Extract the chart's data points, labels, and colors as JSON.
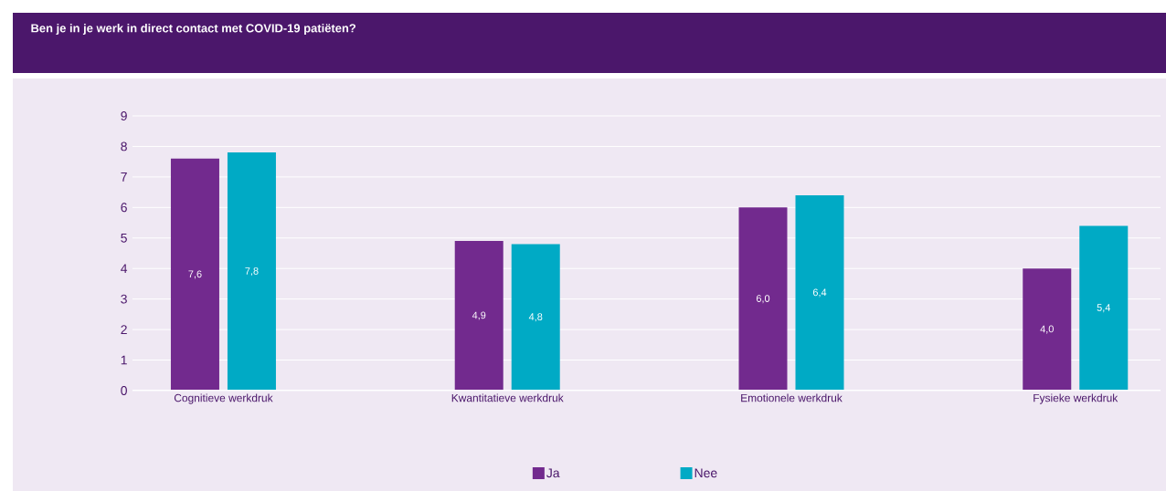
{
  "chart_data": {
    "type": "bar",
    "title": "Ben je in je werk in direct contact met COVID-19 patiëten?",
    "categories": [
      "Cognitieve werkdruk",
      "Kwantitatieve werkdruk",
      "Emotionele werkdruk",
      "Fysieke werkdruk"
    ],
    "series": [
      {
        "name": "Ja",
        "color": "#722a8e",
        "values": [
          7.6,
          4.9,
          6.0,
          4.0
        ],
        "value_labels": [
          "7,6",
          "4,9",
          "6,0",
          "4,0"
        ]
      },
      {
        "name": "Nee",
        "color": "#00aac5",
        "values": [
          7.8,
          4.8,
          6.4,
          5.4
        ],
        "value_labels": [
          "7,8",
          "4,8",
          "6,4",
          "5,4"
        ]
      }
    ],
    "ylim": [
      0,
      9
    ],
    "yticks": [
      0,
      1,
      2,
      3,
      4,
      5,
      6,
      7,
      8,
      9
    ],
    "grid": "y",
    "legend": "bottom"
  }
}
